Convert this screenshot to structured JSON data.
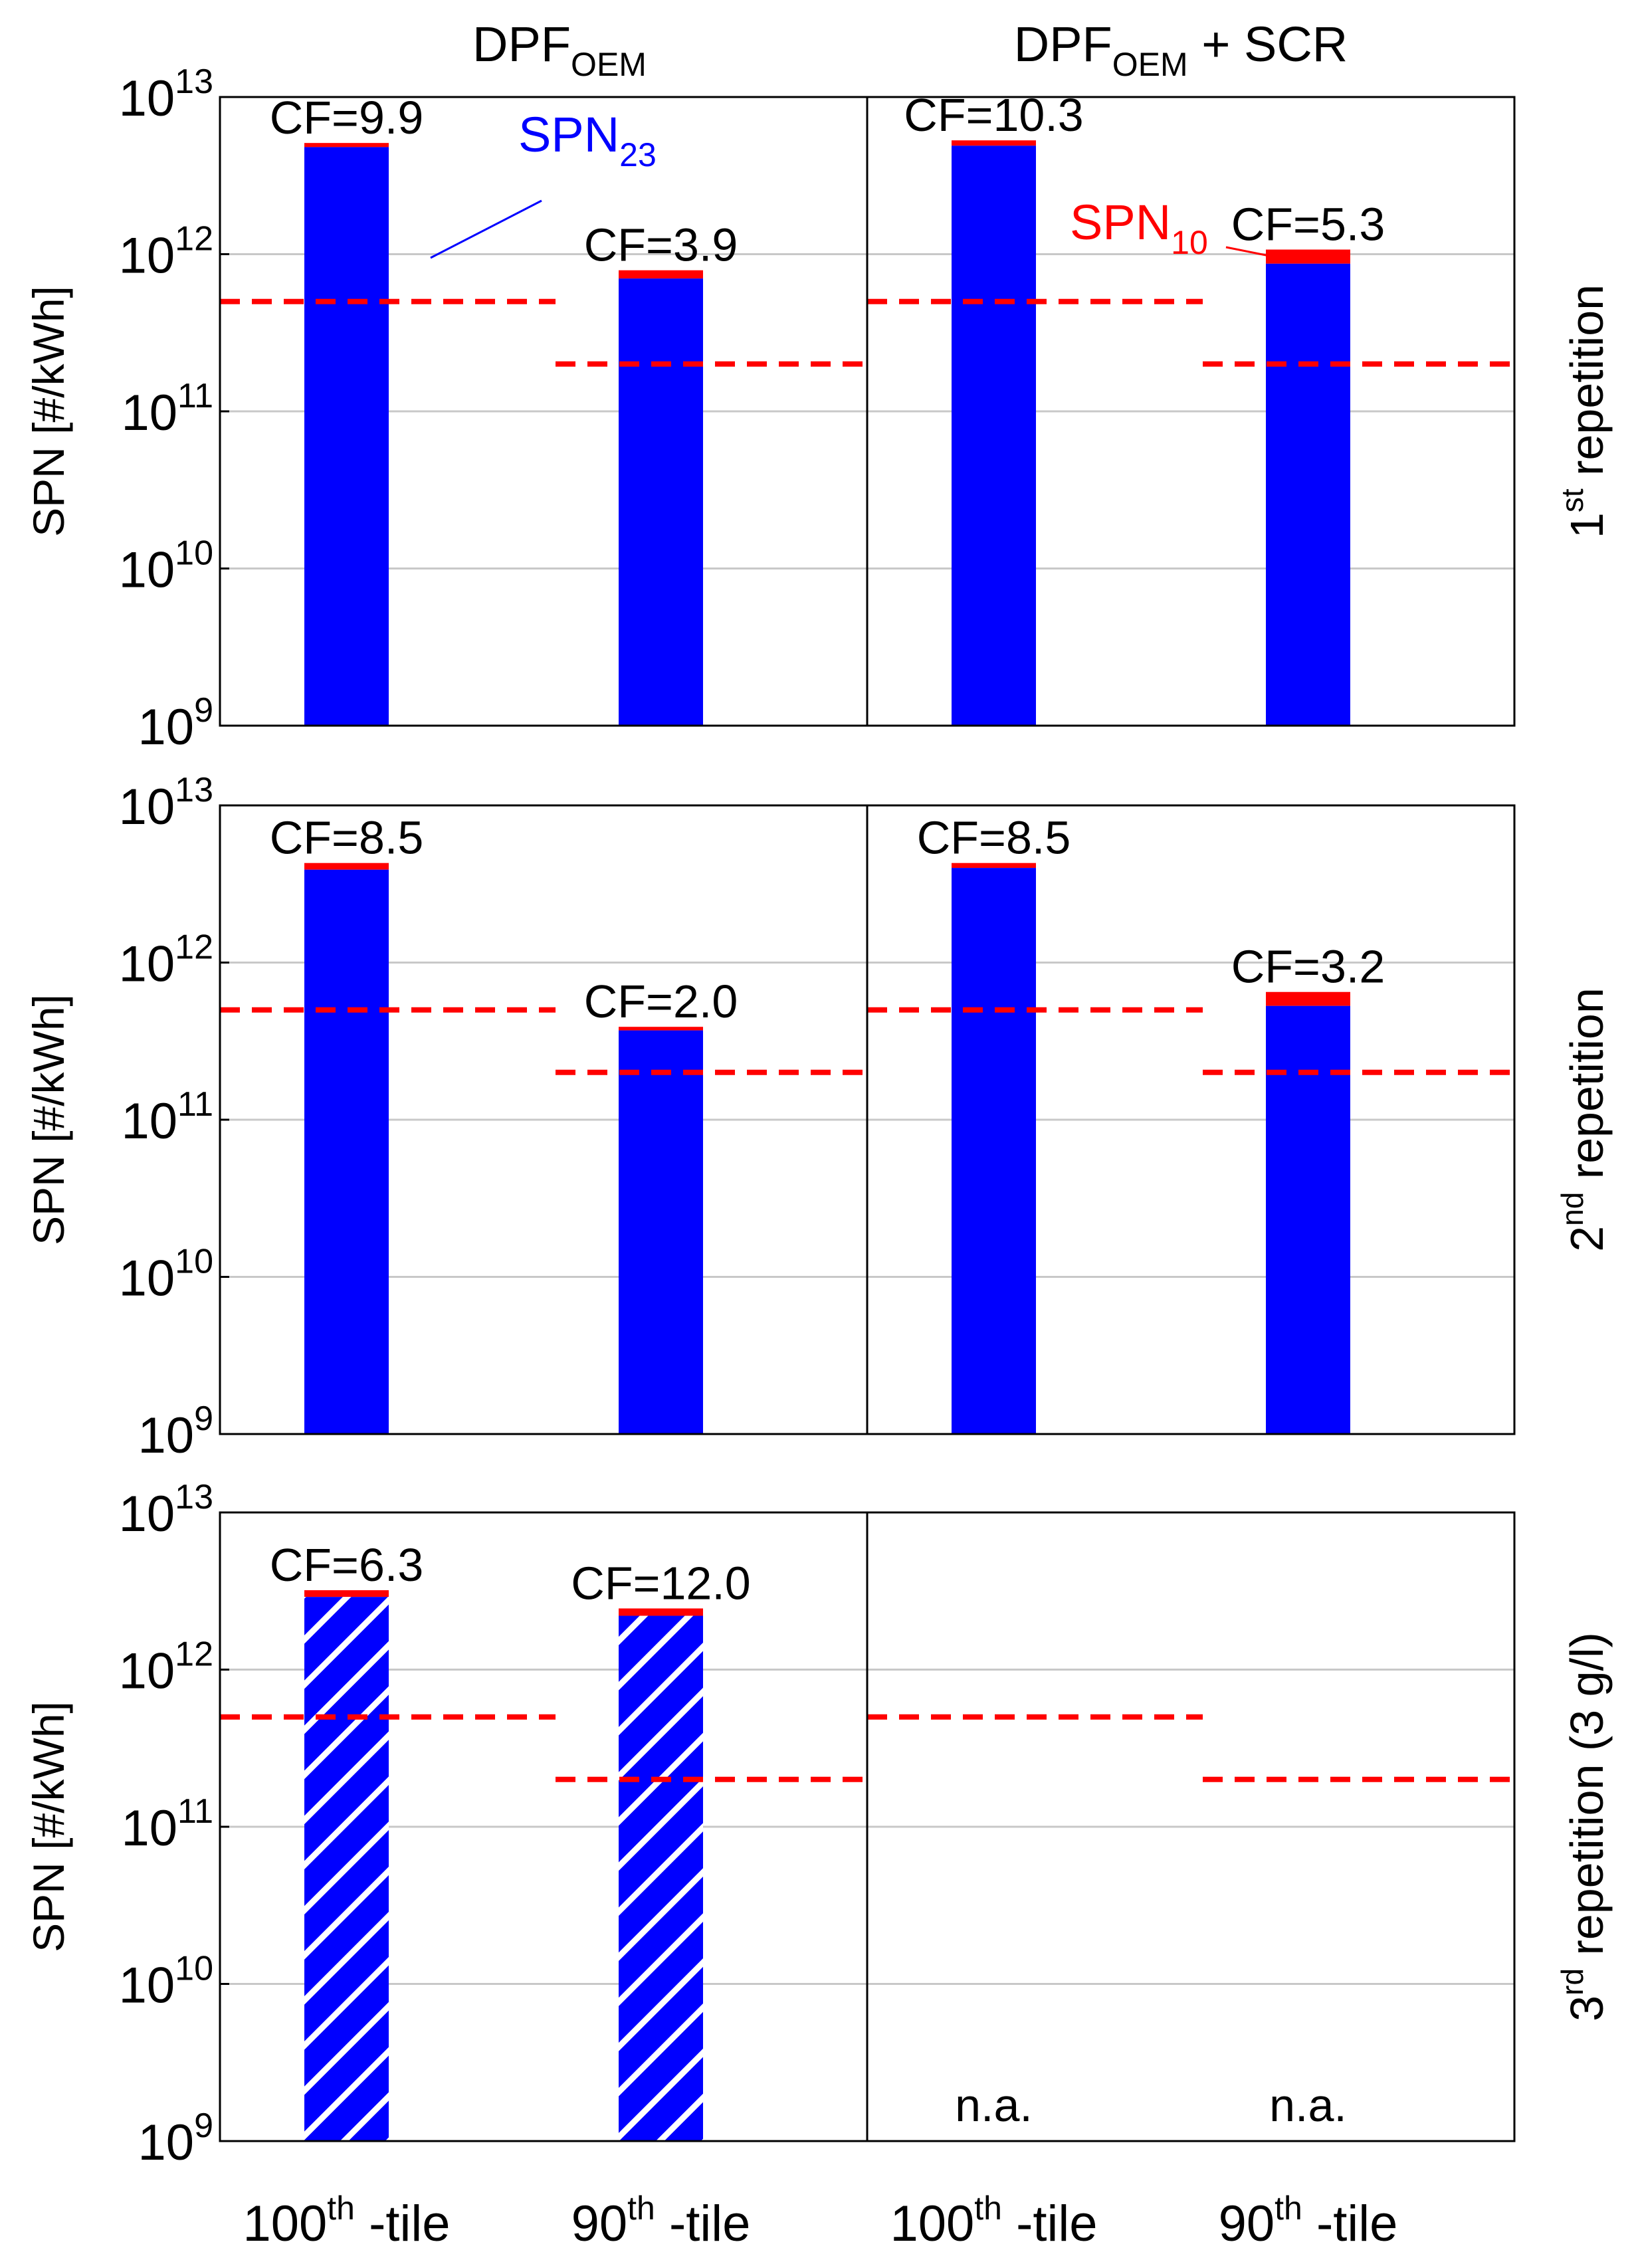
{
  "chart_data": {
    "type": "bar",
    "scale": "log10",
    "ylim_exp": [
      9,
      13
    ],
    "y_tick_exponents": [
      9,
      10,
      11,
      12,
      13
    ],
    "y_tick_base": "10",
    "ylabel": "SPN [#/kWh]",
    "column_titles": [
      {
        "base": "DPF",
        "sub": "OEM",
        "suffix": ""
      },
      {
        "base": "DPF",
        "sub": "OEM",
        "suffix": " + SCR"
      }
    ],
    "row_labels": [
      {
        "num": "1",
        "sup": "st",
        "rest": " repetition"
      },
      {
        "num": "2",
        "sup": "nd",
        "rest": " repetition"
      },
      {
        "num": "3",
        "sup": "rd",
        "rest": " repetition (3 g/l)"
      }
    ],
    "categories": [
      {
        "num": "100",
        "sup": "th",
        "rest": " -tile"
      },
      {
        "num": "90",
        "sup": "th",
        "rest": " -tile"
      }
    ],
    "limits": [
      500000000000.0,
      200000000000.0
    ],
    "colors": {
      "spn23": "#0000ff",
      "spn10": "#ff0000",
      "limit": "#ff0000",
      "grid": "#c8c8c8"
    },
    "series_labels": {
      "spn23": {
        "base": "SPN",
        "sub": "23"
      },
      "spn10": {
        "base": "SPN",
        "sub": "10"
      }
    },
    "panels": [
      {
        "row": 0,
        "col": 0,
        "bars": [
          {
            "spn23": 4800000000000.0,
            "spn10": 5100000000000.0,
            "cf": "CF=9.9",
            "hatched": false
          },
          {
            "spn23": 700000000000.0,
            "spn10": 790000000000.0,
            "cf": "CF=3.9",
            "hatched": false
          }
        ]
      },
      {
        "row": 0,
        "col": 1,
        "bars": [
          {
            "spn23": 4900000000000.0,
            "spn10": 5300000000000.0,
            "cf": "CF=10.3",
            "hatched": false
          },
          {
            "spn23": 870000000000.0,
            "spn10": 1070000000000.0,
            "cf": "CF=5.3",
            "hatched": false
          }
        ]
      },
      {
        "row": 1,
        "col": 0,
        "bars": [
          {
            "spn23": 3900000000000.0,
            "spn10": 4300000000000.0,
            "cf": "CF=8.5",
            "hatched": false
          },
          {
            "spn23": 370000000000.0,
            "spn10": 390000000000.0,
            "cf": "CF=2.0",
            "hatched": false
          }
        ]
      },
      {
        "row": 1,
        "col": 1,
        "bars": [
          {
            "spn23": 4000000000000.0,
            "spn10": 4300000000000.0,
            "cf": "CF=8.5",
            "hatched": false
          },
          {
            "spn23": 530000000000.0,
            "spn10": 650000000000.0,
            "cf": "CF=3.2",
            "hatched": false
          }
        ]
      },
      {
        "row": 2,
        "col": 0,
        "bars": [
          {
            "spn23": 2900000000000.0,
            "spn10": 3200000000000.0,
            "cf": "CF=6.3",
            "hatched": true
          },
          {
            "spn23": 2200000000000.0,
            "spn10": 2450000000000.0,
            "cf": "CF=12.0",
            "hatched": true
          }
        ]
      },
      {
        "row": 2,
        "col": 1,
        "bars": [],
        "na": [
          "n.a.",
          "n.a."
        ]
      }
    ]
  }
}
